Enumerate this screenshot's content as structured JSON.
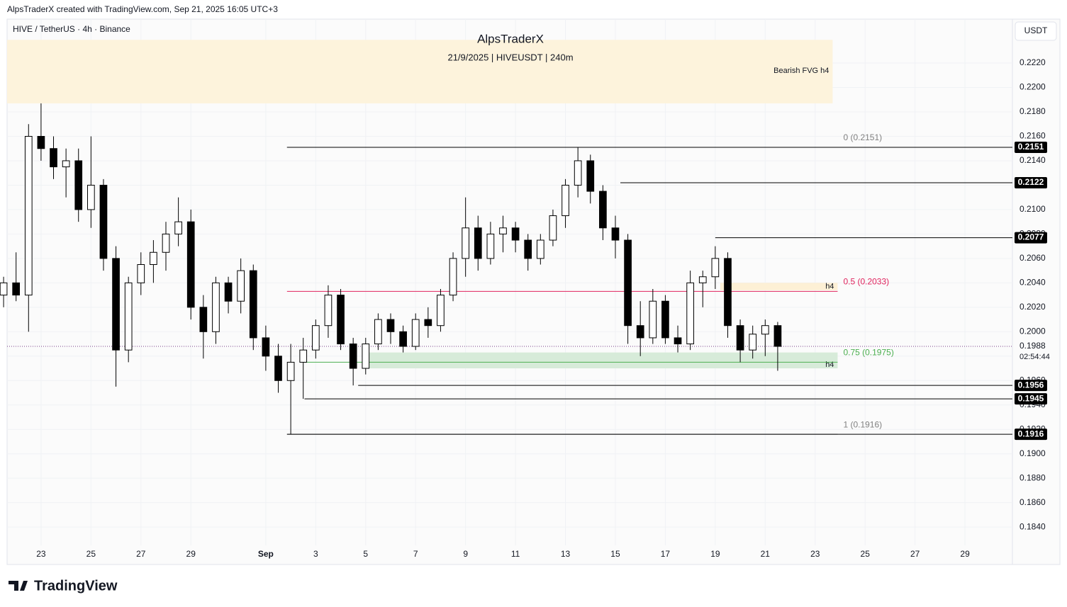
{
  "header": {
    "caption": "AlpsTraderX created with TradingView.com, Sep 21, 2025 16:05 UTC+3",
    "brand": "TradingView"
  },
  "chart_data": {
    "type": "candlestick",
    "symbol": "HIVE / TetherUS · 4h · Binance",
    "title": "AlpsTraderX",
    "subtitle": "21/9/2025 | HIVEUSDT | 240m",
    "currency": "USDT",
    "up_color": "#ffffff",
    "down_color": "#000000",
    "ylim": [
      0.1825,
      0.2256
    ],
    "yticks": [
      {
        "value": 0.222,
        "label": "0.2220"
      },
      {
        "value": 0.22,
        "label": "0.2200"
      },
      {
        "value": 0.218,
        "label": "0.2180"
      },
      {
        "value": 0.216,
        "label": "0.2160"
      },
      {
        "value": 0.214,
        "label": "0.2140"
      },
      {
        "value": 0.212,
        "label": "0.2120"
      },
      {
        "value": 0.21,
        "label": "0.2100"
      },
      {
        "value": 0.208,
        "label": "0.2080"
      },
      {
        "value": 0.206,
        "label": "0.2060"
      },
      {
        "value": 0.204,
        "label": "0.2040"
      },
      {
        "value": 0.202,
        "label": "0.2020"
      },
      {
        "value": 0.2,
        "label": "0.2000"
      },
      {
        "value": 0.198,
        "label": "0.1980"
      },
      {
        "value": 0.196,
        "label": "0.1960"
      },
      {
        "value": 0.194,
        "label": "0.1940"
      },
      {
        "value": 0.192,
        "label": "0.1920"
      },
      {
        "value": 0.19,
        "label": "0.1900"
      },
      {
        "value": 0.188,
        "label": "0.1880"
      },
      {
        "value": 0.186,
        "label": "0.1860"
      },
      {
        "value": 0.184,
        "label": "0.1840"
      }
    ],
    "xlim": [
      -1.36,
      38.9
    ],
    "xticks": [
      {
        "value": 0,
        "label": "23"
      },
      {
        "value": 2,
        "label": "25"
      },
      {
        "value": 4,
        "label": "27"
      },
      {
        "value": 6,
        "label": "29"
      },
      {
        "value": 9,
        "label": "Sep"
      },
      {
        "value": 11,
        "label": "3"
      },
      {
        "value": 13,
        "label": "5"
      },
      {
        "value": 15,
        "label": "7"
      },
      {
        "value": 17,
        "label": "9"
      },
      {
        "value": 19,
        "label": "11"
      },
      {
        "value": 21,
        "label": "13"
      },
      {
        "value": 23,
        "label": "15"
      },
      {
        "value": 25,
        "label": "17"
      },
      {
        "value": 27,
        "label": "19"
      },
      {
        "value": 29,
        "label": "21"
      },
      {
        "value": 31,
        "label": "23"
      },
      {
        "value": 33,
        "label": "25"
      },
      {
        "value": 35,
        "label": "27"
      },
      {
        "value": 37,
        "label": "29"
      }
    ],
    "candles": {
      "x": [
        -1.5,
        -1,
        -0.5,
        0,
        0.5,
        1,
        1.5,
        2,
        2.5,
        3,
        3.5,
        4,
        4.5,
        5,
        5.5,
        6,
        6.5,
        7,
        7.5,
        8,
        8.5,
        9,
        9.5,
        10,
        10.5,
        11,
        11.5,
        12,
        12.5,
        13,
        13.5,
        14,
        14.5,
        15,
        15.5,
        16,
        16.5,
        17,
        17.5,
        18,
        18.5,
        19,
        19.5,
        20,
        20.5,
        21,
        21.5,
        22,
        22.5,
        23,
        23.5,
        24,
        24.5,
        25,
        25.5,
        26,
        26.5,
        27,
        27.5,
        28,
        28.5,
        29,
        29.5
      ],
      "open": [
        0.203,
        0.204,
        0.203,
        0.216,
        0.215,
        0.2135,
        0.214,
        0.21,
        0.212,
        0.206,
        0.1985,
        0.204,
        0.2055,
        0.2065,
        0.208,
        0.209,
        0.202,
        0.2,
        0.204,
        0.2025,
        0.205,
        0.1995,
        0.198,
        0.196,
        0.1975,
        0.1985,
        0.2005,
        0.203,
        0.199,
        0.197,
        0.199,
        0.201,
        0.2,
        0.1988,
        0.201,
        0.2005,
        0.203,
        0.206,
        0.2085,
        0.206,
        0.208,
        0.2085,
        0.2075,
        0.206,
        0.2075,
        0.2095,
        0.212,
        0.214,
        0.2115,
        0.2085,
        0.2075,
        0.2005,
        0.1995,
        0.2025,
        0.1995,
        0.199,
        0.204,
        0.2045,
        0.206,
        0.2005,
        0.1985,
        0.1998,
        0.2005
      ],
      "high": [
        0.2045,
        0.2065,
        0.217,
        0.2187,
        0.216,
        0.215,
        0.215,
        0.216,
        0.2125,
        0.207,
        0.2045,
        0.2065,
        0.2075,
        0.209,
        0.211,
        0.21,
        0.203,
        0.2045,
        0.2045,
        0.206,
        0.2055,
        0.2005,
        0.199,
        0.199,
        0.1995,
        0.201,
        0.2038,
        0.2035,
        0.1995,
        0.1995,
        0.2015,
        0.2015,
        0.2005,
        0.2015,
        0.202,
        0.2035,
        0.2065,
        0.211,
        0.2095,
        0.209,
        0.2095,
        0.209,
        0.208,
        0.208,
        0.21,
        0.2125,
        0.2151,
        0.2145,
        0.212,
        0.2095,
        0.208,
        0.2025,
        0.2035,
        0.203,
        0.2005,
        0.205,
        0.205,
        0.207,
        0.2065,
        0.201,
        0.2005,
        0.201,
        0.2008
      ],
      "low": [
        0.202,
        0.2025,
        0.2,
        0.214,
        0.2125,
        0.211,
        0.209,
        0.2085,
        0.205,
        0.1955,
        0.1975,
        0.203,
        0.204,
        0.205,
        0.207,
        0.201,
        0.1978,
        0.199,
        0.2015,
        0.2015,
        0.1985,
        0.1968,
        0.195,
        0.1916,
        0.1945,
        0.1978,
        0.1995,
        0.1985,
        0.1956,
        0.1965,
        0.1985,
        0.199,
        0.1983,
        0.1985,
        0.1995,
        0.2,
        0.2025,
        0.2045,
        0.205,
        0.2055,
        0.2065,
        0.2065,
        0.205,
        0.2055,
        0.207,
        0.2085,
        0.211,
        0.2105,
        0.2075,
        0.206,
        0.199,
        0.198,
        0.199,
        0.199,
        0.1983,
        0.1985,
        0.202,
        0.2035,
        0.1995,
        0.1975,
        0.1978,
        0.198,
        0.1968
      ],
      "close": [
        0.204,
        0.203,
        0.216,
        0.215,
        0.2135,
        0.214,
        0.21,
        0.212,
        0.206,
        0.1985,
        0.204,
        0.2055,
        0.2065,
        0.208,
        0.209,
        0.202,
        0.2,
        0.204,
        0.2025,
        0.205,
        0.1995,
        0.198,
        0.196,
        0.1975,
        0.1985,
        0.2005,
        0.203,
        0.199,
        0.197,
        0.199,
        0.201,
        0.2,
        0.1988,
        0.201,
        0.2005,
        0.203,
        0.206,
        0.2085,
        0.206,
        0.208,
        0.2085,
        0.2075,
        0.206,
        0.2075,
        0.2095,
        0.212,
        0.214,
        0.2115,
        0.2085,
        0.2075,
        0.2005,
        0.1995,
        0.2025,
        0.1995,
        0.199,
        0.204,
        0.2045,
        0.206,
        0.2005,
        0.1985,
        0.1998,
        0.2005,
        0.1988
      ]
    },
    "zones": [
      {
        "label": "Bearish FVG h4",
        "top": 0.2239,
        "bottom": 0.2187,
        "from": -1.36,
        "to": 31.7,
        "color": "#fdf3dc"
      },
      {
        "label": "h4",
        "top": 0.204,
        "bottom": 0.2034,
        "from": 27.2,
        "to": 31.9,
        "color": "#fdf0d5"
      },
      {
        "label": "h4",
        "top": 0.1983,
        "bottom": 0.197,
        "from": 12.9,
        "to": 31.9,
        "color": "#d7ebd9"
      }
    ],
    "fib": [
      {
        "value": 0.2151,
        "label": "0 (0.2151)",
        "color": "#808080",
        "from": 9.85
      },
      {
        "value": 0.2033,
        "label": "0.5 (0.2033)",
        "color": "#e0245e",
        "from": 9.85
      },
      {
        "value": 0.1975,
        "label": "0.75 (0.1975)",
        "color": "#4caf50",
        "from": 10.5
      },
      {
        "value": 0.1916,
        "label": "1 (0.1916)",
        "color": "#808080",
        "from": 9.85
      }
    ],
    "fib_to": 31.9,
    "levels": [
      {
        "value": 0.2151,
        "label": "0.2151",
        "from": 9.85
      },
      {
        "value": 0.2122,
        "label": "0.2122",
        "from": 23.2
      },
      {
        "value": 0.2077,
        "label": "0.2077",
        "from": 27
      },
      {
        "value": 0.1956,
        "label": "0.1956",
        "from": 12.7
      },
      {
        "value": 0.1945,
        "label": "0.1945",
        "from": 10.55
      },
      {
        "value": 0.1916,
        "label": "0.1916",
        "from": 9.85
      }
    ],
    "last_price": {
      "value": 0.1988,
      "label": "0.1988",
      "countdown": "02:54:44"
    }
  }
}
